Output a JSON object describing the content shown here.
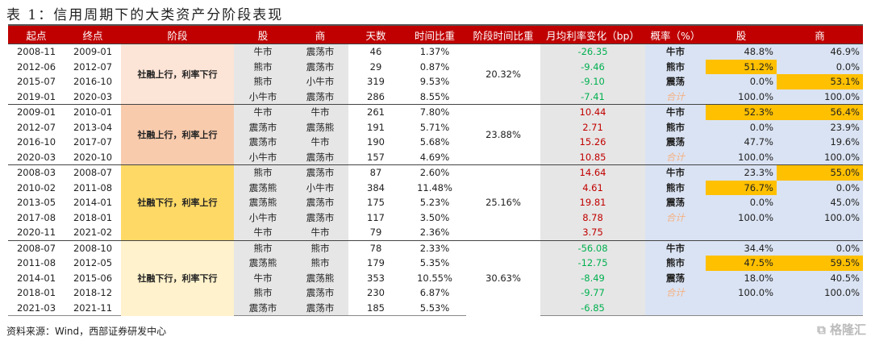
{
  "title": "表 1：信用周期下的大类资产分阶段表现",
  "headers": [
    "起点",
    "终点",
    "阶段",
    "股",
    "商",
    "天数",
    "时间比重",
    "阶段时间比重",
    "月均利率变化（bp）",
    "概率（%）",
    "股",
    "商"
  ],
  "sections": [
    {
      "stage": "社融上行，利率下行",
      "stage_color": "#fce4d6",
      "stage_share": "20.32%",
      "rows": [
        [
          "2008-11",
          "2009-01",
          "牛市",
          "震荡市",
          "46",
          "1.37%",
          "-26.35"
        ],
        [
          "2012-06",
          "2012-07",
          "熊市",
          "震荡市",
          "29",
          "0.87%",
          "-9.46"
        ],
        [
          "2015-07",
          "2016-10",
          "熊市",
          "小牛市",
          "319",
          "9.53%",
          "-9.10"
        ],
        [
          "2019-01",
          "2020-03",
          "小牛市",
          "震荡市",
          "286",
          "8.55%",
          "-7.41"
        ]
      ],
      "prob": [
        {
          "label": "牛市",
          "stock": "48.8%",
          "comm": "46.9%",
          "hs": false,
          "hc": false
        },
        {
          "label": "熊市",
          "stock": "51.2%",
          "comm": "0.0%",
          "hs": true,
          "hc": false
        },
        {
          "label": "震荡",
          "stock": "0.0%",
          "comm": "53.1%",
          "hs": false,
          "hc": true
        },
        {
          "label": "合计",
          "stock": "100.0%",
          "comm": "100.0%",
          "hs": false,
          "hc": false
        }
      ]
    },
    {
      "stage": "社融上行，利率上行",
      "stage_color": "#f8cbad",
      "stage_share": "23.88%",
      "rows": [
        [
          "2009-01",
          "2010-01",
          "牛市",
          "牛市",
          "261",
          "7.80%",
          "10.44"
        ],
        [
          "2012-07",
          "2013-04",
          "震荡市",
          "震荡熊",
          "191",
          "5.71%",
          "2.71"
        ],
        [
          "2016-10",
          "2017-07",
          "震荡市",
          "牛市",
          "190",
          "5.68%",
          "15.26"
        ],
        [
          "2020-03",
          "2020-10",
          "小牛市",
          "震荡市",
          "157",
          "4.69%",
          "10.85"
        ]
      ],
      "prob": [
        {
          "label": "牛市",
          "stock": "52.3%",
          "comm": "56.4%",
          "hs": true,
          "hc": true
        },
        {
          "label": "熊市",
          "stock": "0.0%",
          "comm": "23.9%",
          "hs": false,
          "hc": false
        },
        {
          "label": "震荡",
          "stock": "47.7%",
          "comm": "19.6%",
          "hs": false,
          "hc": false
        },
        {
          "label": "合计",
          "stock": "100.0%",
          "comm": "100.0%",
          "hs": false,
          "hc": false
        }
      ]
    },
    {
      "stage": "社融下行，利率上行",
      "stage_color": "#ffd966",
      "stage_share": "25.16%",
      "rows": [
        [
          "2008-03",
          "2008-07",
          "熊市",
          "震荡市",
          "87",
          "2.60%",
          "14.64"
        ],
        [
          "2010-02",
          "2011-08",
          "震荡熊",
          "小牛市",
          "384",
          "11.48%",
          "4.61"
        ],
        [
          "2013-05",
          "2014-01",
          "震荡熊",
          "震荡市",
          "175",
          "5.23%",
          "19.81"
        ],
        [
          "2017-08",
          "2018-01",
          "小牛市",
          "震荡市",
          "117",
          "3.50%",
          "8.78"
        ],
        [
          "2020-11",
          "2021-02",
          "牛市",
          "牛市",
          "79",
          "2.36%",
          "3.75"
        ]
      ],
      "prob": [
        {
          "label": "牛市",
          "stock": "23.3%",
          "comm": "55.0%",
          "hs": false,
          "hc": true
        },
        {
          "label": "熊市",
          "stock": "76.7%",
          "comm": "0.0%",
          "hs": true,
          "hc": false
        },
        {
          "label": "震荡",
          "stock": "0.0%",
          "comm": "45.0%",
          "hs": false,
          "hc": false
        },
        {
          "label": "合计",
          "stock": "100.0%",
          "comm": "100.0%",
          "hs": false,
          "hc": false
        }
      ]
    },
    {
      "stage": "社融下行，利率下行",
      "stage_color": "#fff2cc",
      "stage_share": "30.63%",
      "rows": [
        [
          "2008-07",
          "2008-10",
          "熊市",
          "熊市",
          "78",
          "2.33%",
          "-56.08"
        ],
        [
          "2011-08",
          "2012-05",
          "震荡熊",
          "熊市",
          "179",
          "5.35%",
          "-12.75"
        ],
        [
          "2014-01",
          "2015-06",
          "牛市",
          "震荡熊",
          "353",
          "10.55%",
          "-8.49"
        ],
        [
          "2018-01",
          "2018-12",
          "熊市",
          "震荡市",
          "230",
          "6.87%",
          "-9.77"
        ],
        [
          "2021-03",
          "2021-11",
          "震荡市",
          "震荡市",
          "185",
          "5.53%",
          "-6.85"
        ]
      ],
      "prob": [
        {
          "label": "牛市",
          "stock": "34.4%",
          "comm": "0.0%",
          "hs": false,
          "hc": false
        },
        {
          "label": "熊市",
          "stock": "47.5%",
          "comm": "59.5%",
          "hs": true,
          "hc": true
        },
        {
          "label": "震荡",
          "stock": "18.0%",
          "comm": "40.5%",
          "hs": false,
          "hc": false
        },
        {
          "label": "合计",
          "stock": "100.0%",
          "comm": "100.0%",
          "hs": false,
          "hc": false
        }
      ]
    }
  ],
  "source": "资料来源：Wind，西部证券研发中心",
  "watermark": "格隆汇"
}
